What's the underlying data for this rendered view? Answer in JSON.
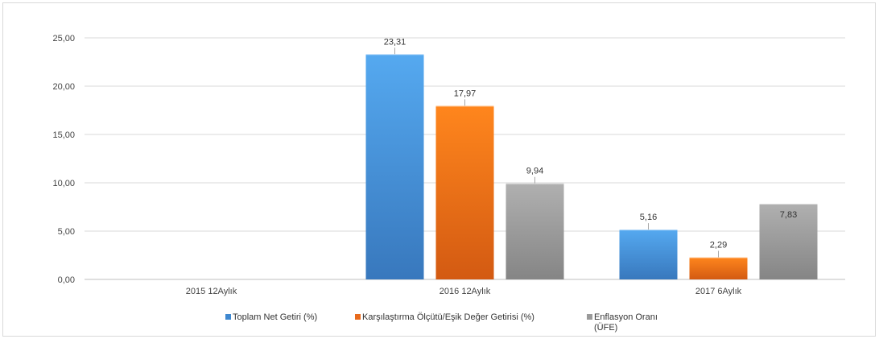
{
  "chart_data": {
    "type": "bar",
    "categories": [
      "2015 12Aylık",
      "2016 12Aylık",
      "2017 6Aylık"
    ],
    "series": [
      {
        "name": "Toplam Net Getiri (%)",
        "values": [
          null,
          23.31,
          5.16
        ],
        "labels": [
          "",
          "23,31",
          "5,16"
        ],
        "color": "#3f88d0"
      },
      {
        "name": "Karşılaştırma Ölçütü/Eşik Değer Getirisi (%)",
        "values": [
          null,
          17.97,
          2.29
        ],
        "labels": [
          "",
          "17,97",
          "2,29"
        ],
        "color": "#e86a1c"
      },
      {
        "name": "Enflasyon Oranı (ÜFE)",
        "values": [
          null,
          9.94,
          7.83
        ],
        "labels": [
          "",
          "9,94",
          "7,83"
        ],
        "color": "#9a9a9a"
      }
    ],
    "ylim": [
      0,
      25
    ],
    "yticks": [
      "0,00",
      "5,00",
      "10,00",
      "15,00",
      "20,00",
      "25,00"
    ],
    "grid": true,
    "legend_position": "bottom",
    "legend_lines": [
      [
        "Toplam Net Getiri (%)"
      ],
      [
        "Karşılaştırma Ölçütü/Eşik Değer Getirisi (%)"
      ],
      [
        "Enflasyon Oranı",
        "(ÜFE)"
      ]
    ],
    "xlabel": "",
    "ylabel": "",
    "title": ""
  }
}
